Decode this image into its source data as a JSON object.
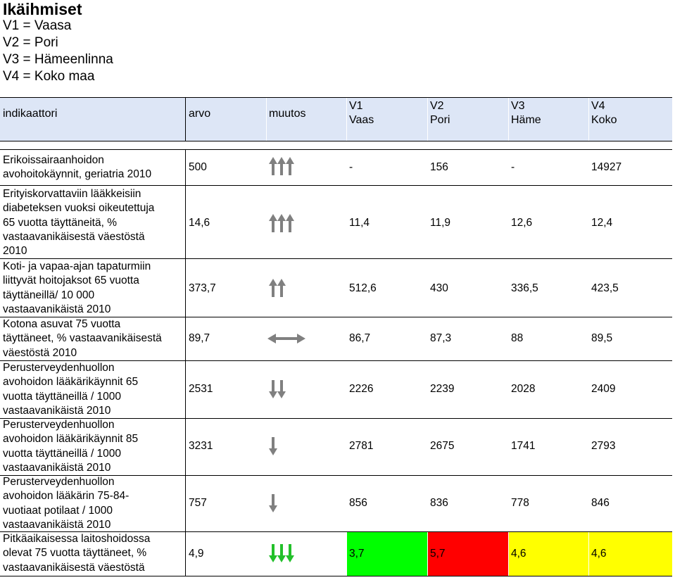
{
  "title": "Ikäihmiset",
  "legend": [
    "V1 = Vaasa",
    "V2 = Pori",
    "V3 = Hämeenlinna",
    "V4 = Koko maa"
  ],
  "columns": {
    "indikaattori": "indikaattori",
    "arvo": "arvo",
    "muutos": "muutos",
    "v1": [
      "V1",
      "Vaas"
    ],
    "v2": [
      "V2",
      "Pori"
    ],
    "v3": [
      "V3",
      "Häme"
    ],
    "v4": [
      "V4",
      "Koko"
    ]
  },
  "rows": [
    {
      "indicator": [
        "Erikoissairaanhoidon",
        "avohoitokäynnit, geriatria 2010"
      ],
      "arvo": "500",
      "trend": "three-up-arrows-icon",
      "v1": "-",
      "v2": "156",
      "v3": "-",
      "v4": "14927"
    },
    {
      "indicator": [
        "Erityiskorvattaviin lääkkeisiin",
        "diabeteksen vuoksi oikeutettuja",
        "65 vuotta täyttäneitä, %",
        "vastaavanikäisestä väestöstä",
        "2010"
      ],
      "arvo": "14,6",
      "trend": "three-up-arrows-icon",
      "v1": "11,4",
      "v2": "11,9",
      "v3": "12,6",
      "v4": "12,4"
    },
    {
      "indicator": [
        "Koti- ja vapaa-ajan tapaturmiin",
        "liittyvät hoitojaksot 65 vuotta",
        "täyttäneillä/ 10 000",
        "vastaavanikäistä 2010"
      ],
      "arvo": "373,7",
      "trend": "two-up-arrows-icon",
      "v1": "512,6",
      "v2": "430",
      "v3": "336,5",
      "v4": "423,5"
    },
    {
      "indicator": [
        "Kotona asuvat 75 vuotta",
        "täyttäneet, % vastaavanikäisestä",
        "väestöstä 2010"
      ],
      "arvo": "89,7",
      "trend": "left-right-arrow-icon",
      "v1": "86,7",
      "v2": "87,3",
      "v3": "88",
      "v4": "89,5"
    },
    {
      "indicator": [
        "Perusterveydenhuollon",
        "avohoidon lääkärikäynnit 65",
        "vuotta täyttäneillä / 1000",
        "vastaavanikäistä 2010"
      ],
      "arvo": "2531",
      "trend": "two-down-arrows-icon",
      "v1": "2226",
      "v2": "2239",
      "v3": "2028",
      "v4": "2409"
    },
    {
      "indicator": [
        "Perusterveydenhuollon",
        "avohoidon lääkärikäynnit 85",
        "vuotta täyttäneillä / 1000",
        "vastaavanikäistä 2010"
      ],
      "arvo": "3231",
      "trend": "one-down-arrow-icon",
      "v1": "2781",
      "v2": "2675",
      "v3": "1741",
      "v4": "2793"
    },
    {
      "indicator": [
        "Perusterveydenhuollon",
        "avohoidon lääkärin 75-84-",
        "vuotiaat potilaat / 1000",
        "vastaavanikäistä 2010"
      ],
      "arvo": "757",
      "trend": "one-down-arrow-icon",
      "v1": "856",
      "v2": "836",
      "v3": "778",
      "v4": "846"
    },
    {
      "indicator": [
        "Pitkäaikaisessa laitoshoidossa",
        "olevat 75 vuotta täyttäneet, %",
        "vastaavanikäisestä väestöstä"
      ],
      "arvo": "4,9",
      "trend": "three-down-green-arrows-icon",
      "v1": "3,7",
      "v2": "5,7",
      "v3": "4,6",
      "v4": "4,6"
    }
  ],
  "colors": {
    "header_bg": "#dde6f6",
    "arrow_gray": "#808080",
    "arrow_green": "#22c02a",
    "cell_green": "#00ff00",
    "cell_red": "#ff0000",
    "cell_yellow": "#ffff00"
  }
}
